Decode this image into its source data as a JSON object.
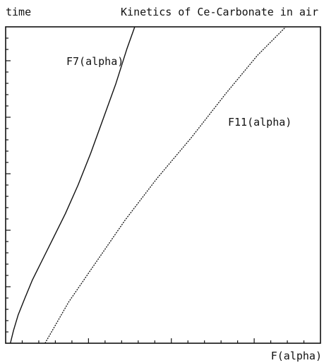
{
  "chart_data": {
    "type": "line",
    "title": "Kinetics of Ce-Carbonate in air",
    "ylabel": "time",
    "xlabel": "F(alpha)",
    "xlim": [
      0,
      1
    ],
    "ylim": [
      0,
      1
    ],
    "grid": false,
    "ticks": {
      "x_count": 19,
      "y_count": 28
    },
    "series": [
      {
        "name": "F7(alpha)",
        "style": "solid",
        "color": "#111111",
        "x": [
          0.015,
          0.025,
          0.04,
          0.06,
          0.085,
          0.115,
          0.15,
          0.19,
          0.23,
          0.27,
          0.31,
          0.35,
          0.385,
          0.41
        ],
        "y": [
          0.0,
          0.04,
          0.09,
          0.14,
          0.2,
          0.26,
          0.33,
          0.41,
          0.5,
          0.6,
          0.71,
          0.82,
          0.93,
          1.0
        ]
      },
      {
        "name": "F11(alpha)",
        "style": "dotted",
        "color": "#111111",
        "x": [
          0.125,
          0.2,
          0.29,
          0.38,
          0.48,
          0.59,
          0.7,
          0.8,
          0.89
        ],
        "y": [
          0.0,
          0.13,
          0.26,
          0.39,
          0.52,
          0.65,
          0.79,
          0.91,
          1.0
        ]
      }
    ]
  }
}
